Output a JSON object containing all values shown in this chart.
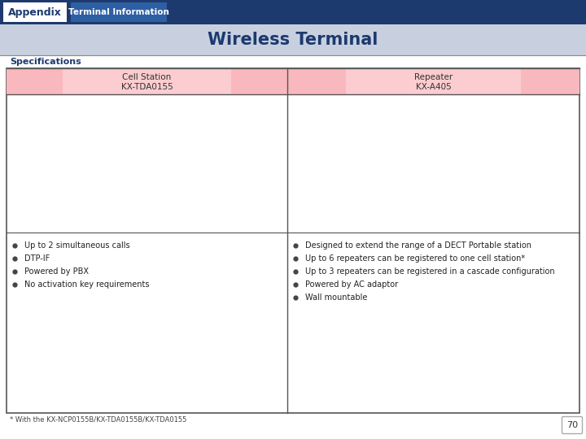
{
  "title_appendix": "Appendix",
  "title_tab": "Terminal Information",
  "title_main": "Wireless Terminal",
  "section_label": "Specifications",
  "col1_header_line1": "Cell Station",
  "col1_header_line2": "KX-TDA0155",
  "col2_header_line1": "Repeater",
  "col2_header_line2": "KX-A405",
  "col1_bullets": [
    "Up to 2 simultaneous calls",
    "DTP-IF",
    "Powered by PBX",
    "No activation key requirements"
  ],
  "col2_bullets": [
    "Designed to extend the range of a DECT Portable station",
    "Up to 6 repeaters can be registered to one cell station*",
    "Up to 3 repeaters can be registered in a cascade configuration",
    "Powered by AC adaptor",
    "Wall mountable"
  ],
  "footnote": "* With the KX-NCP0155B/KX-TDA0155B/KX-TDA0155",
  "page_number": "70",
  "bg_dark_blue": "#1c3a6e",
  "bg_light_blue": "#c8d0e0",
  "bg_tab_blue": "#2e5fa3",
  "bg_pink_header": "#f9b8be",
  "bg_white": "#ffffff",
  "text_dark_blue": "#1c3a6e",
  "text_white": "#ffffff",
  "border_color": "#888888",
  "border_dark": "#555555"
}
